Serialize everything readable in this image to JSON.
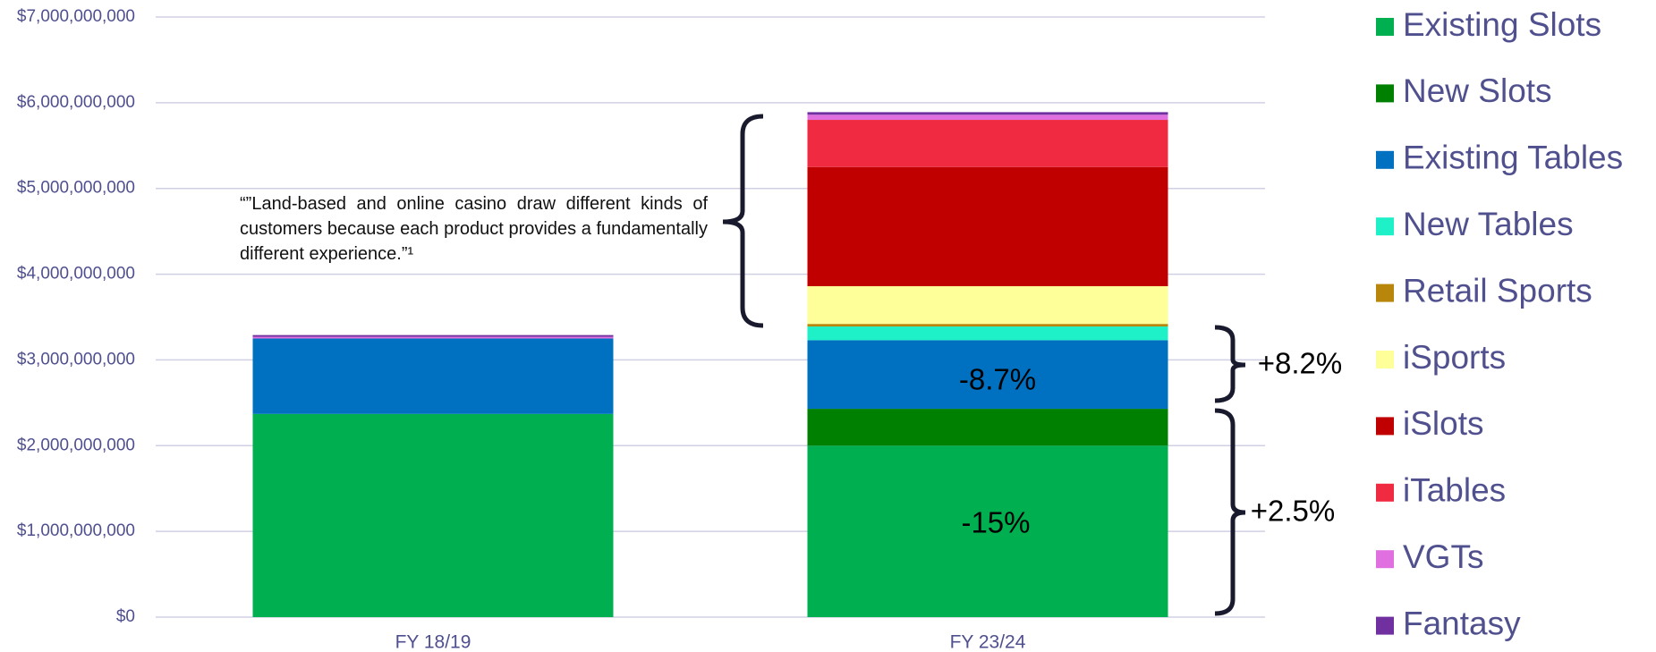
{
  "chart_data": {
    "type": "stacked_bar",
    "categories": [
      "FY 18/19",
      "FY 23/24"
    ],
    "series": [
      {
        "name": "Existing Slots",
        "color": "#00b050",
        "values": [
          2370000000,
          2000000000
        ]
      },
      {
        "name": "New Slots",
        "color": "#008000",
        "values": [
          0,
          430000000
        ]
      },
      {
        "name": "Existing Tables",
        "color": "#0070c0",
        "values": [
          880000000,
          800000000
        ]
      },
      {
        "name": "New Tables",
        "color": "#1ef0c8",
        "values": [
          0,
          160000000
        ]
      },
      {
        "name": "Retail Sports",
        "color": "#b8860b",
        "values": [
          0,
          30000000
        ]
      },
      {
        "name": "iSports",
        "color": "#ffff99",
        "values": [
          0,
          440000000
        ]
      },
      {
        "name": "iSlots",
        "color": "#c00000",
        "values": [
          0,
          1390000000
        ]
      },
      {
        "name": "iTables",
        "color": "#f02a40",
        "values": [
          0,
          550000000
        ]
      },
      {
        "name": "VGTs",
        "color": "#e070e0",
        "values": [
          20000000,
          60000000
        ]
      },
      {
        "name": "Fantasy",
        "color": "#7030a0",
        "values": [
          20000000,
          30000000
        ]
      }
    ],
    "ylim": [
      0,
      7000000000
    ],
    "yticks": [
      {
        "value": 0,
        "label": "$0"
      },
      {
        "value": 1000000000,
        "label": "$1,000,000,000"
      },
      {
        "value": 2000000000,
        "label": "$2,000,000,000"
      },
      {
        "value": 3000000000,
        "label": "$3,000,000,000"
      },
      {
        "value": 4000000000,
        "label": "$4,000,000,000"
      },
      {
        "value": 5000000000,
        "label": "$5,000,000,000"
      },
      {
        "value": 6000000000,
        "label": "$6,000,000,000"
      },
      {
        "value": 7000000000,
        "label": "$7,000,000,000"
      }
    ],
    "grid": true,
    "legend": "right",
    "annotations": [
      "“”Land-based and online casino draw different kinds of customers because each product provides a fundamentally different experience.”¹",
      "-8.7%",
      "-15%",
      "+8.2%",
      "+2.5%"
    ]
  }
}
